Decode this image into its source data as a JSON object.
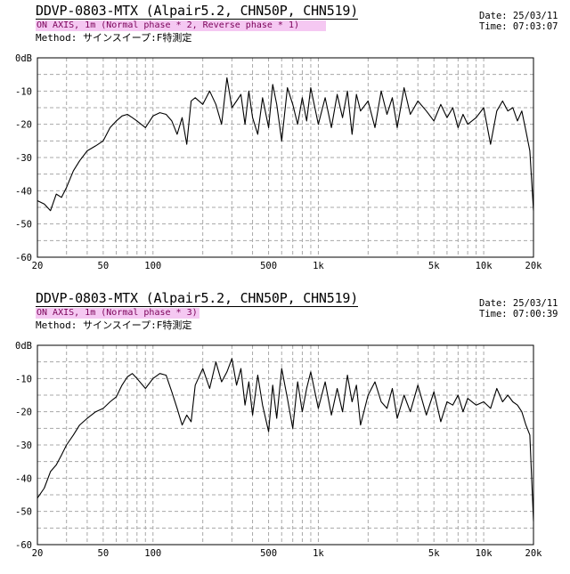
{
  "colors": {
    "subtitle_bg": "#f5c8f2",
    "subtitle_text": "#7a0058",
    "trace": "#000000",
    "grid": "#a8a8a8"
  },
  "charts": [
    {
      "title": "DDVP-0803-MTX (Alpair5.2, CHN50P, CHN519)",
      "subtitle": "ON AXIS, 1m (Normal phase * 2, Reverse phase * 1)",
      "method": "Method: サインスイープ:F特測定",
      "date": "Date: 25/03/11",
      "time": "Time: 07:03:07"
    },
    {
      "title": "DDVP-0803-MTX (Alpair5.2, CHN50P, CHN519)",
      "subtitle": "ON AXIS, 1m (Normal phase * 3)",
      "method": "Method: サインスイープ:F特測定",
      "date": "Date: 25/03/11",
      "time": "Time: 07:00:39"
    }
  ],
  "chart_data": [
    {
      "type": "line",
      "title": "DDVP-0803-MTX (Alpair5.2, CHN50P, CHN519)",
      "subtitle": "ON AXIS, 1m (Normal phase * 2, Reverse phase * 1)",
      "x_scale": "log",
      "xlim": [
        20,
        20000
      ],
      "ylim": [
        -60,
        0
      ],
      "x_tick_labels": [
        "20",
        "50",
        "100",
        "500",
        "1k",
        "5k",
        "10k",
        "20k"
      ],
      "x_tick_values": [
        20,
        50,
        100,
        500,
        1000,
        5000,
        10000,
        20000
      ],
      "y_tick_labels": [
        "0dB",
        "-10",
        "-20",
        "-30",
        "-40",
        "-50",
        "-60"
      ],
      "y_tick_values": [
        0,
        -10,
        -20,
        -30,
        -40,
        -50,
        -60
      ],
      "grid": true,
      "series": [
        {
          "x": [
            20,
            22,
            24,
            26,
            28,
            30,
            33,
            36,
            40,
            45,
            50,
            55,
            60,
            65,
            70,
            75,
            80,
            90,
            100,
            110,
            120,
            130,
            140,
            150,
            160,
            170,
            180,
            200,
            220,
            240,
            260,
            280,
            300,
            320,
            340,
            360,
            380,
            400,
            430,
            460,
            500,
            530,
            560,
            600,
            650,
            700,
            750,
            800,
            850,
            900,
            1000,
            1100,
            1200,
            1300,
            1400,
            1500,
            1600,
            1700,
            1800,
            2000,
            2200,
            2400,
            2600,
            2800,
            3000,
            3300,
            3600,
            4000,
            4500,
            5000,
            5500,
            6000,
            6500,
            7000,
            7500,
            8000,
            9000,
            10000,
            11000,
            12000,
            13000,
            14000,
            15000,
            16000,
            17000,
            18000,
            19000,
            20000
          ],
          "y": [
            -43,
            -44,
            -46,
            -41,
            -42,
            -39,
            -34,
            -31,
            -28,
            -26.5,
            -25,
            -21,
            -19,
            -17.5,
            -17,
            -18,
            -19,
            -21,
            -17.5,
            -16.5,
            -17,
            -19,
            -23,
            -18,
            -26,
            -13,
            -12,
            -14,
            -10,
            -14,
            -20,
            -6,
            -15,
            -13,
            -11,
            -20,
            -10,
            -18,
            -23,
            -12,
            -21,
            -8,
            -14,
            -25,
            -9,
            -14,
            -20,
            -12,
            -19,
            -9,
            -20,
            -12,
            -21,
            -11,
            -18,
            -10,
            -23,
            -11,
            -16,
            -13,
            -21,
            -10,
            -17,
            -12,
            -21,
            -9,
            -17,
            -13,
            -16,
            -19,
            -14,
            -18,
            -15,
            -21,
            -17,
            -20,
            -18,
            -15,
            -26,
            -16,
            -13,
            -16,
            -15,
            -19,
            -16,
            -22,
            -28,
            -46
          ]
        }
      ]
    },
    {
      "type": "line",
      "title": "DDVP-0803-MTX (Alpair5.2, CHN50P, CHN519)",
      "subtitle": "ON AXIS, 1m (Normal phase * 3)",
      "x_scale": "log",
      "xlim": [
        20,
        20000
      ],
      "ylim": [
        -60,
        0
      ],
      "x_tick_labels": [
        "20",
        "50",
        "100",
        "500",
        "1k",
        "5k",
        "10k",
        "20k"
      ],
      "x_tick_values": [
        20,
        50,
        100,
        500,
        1000,
        5000,
        10000,
        20000
      ],
      "y_tick_labels": [
        "0dB",
        "-10",
        "-20",
        "-30",
        "-40",
        "-50",
        "-60"
      ],
      "y_tick_values": [
        0,
        -10,
        -20,
        -30,
        -40,
        -50,
        -60
      ],
      "grid": true,
      "series": [
        {
          "x": [
            20,
            22,
            24,
            26,
            28,
            30,
            33,
            36,
            40,
            45,
            50,
            55,
            60,
            65,
            70,
            75,
            80,
            90,
            100,
            110,
            120,
            130,
            140,
            150,
            160,
            170,
            180,
            200,
            220,
            240,
            260,
            280,
            300,
            320,
            340,
            360,
            380,
            400,
            430,
            460,
            500,
            530,
            560,
            600,
            650,
            700,
            750,
            800,
            850,
            900,
            1000,
            1100,
            1200,
            1300,
            1400,
            1500,
            1600,
            1700,
            1800,
            2000,
            2200,
            2400,
            2600,
            2800,
            3000,
            3300,
            3600,
            4000,
            4500,
            5000,
            5500,
            6000,
            6500,
            7000,
            7500,
            8000,
            9000,
            10000,
            11000,
            12000,
            13000,
            14000,
            15000,
            16000,
            17000,
            18000,
            19000,
            20000
          ],
          "y": [
            -46,
            -43,
            -38,
            -36,
            -33,
            -30,
            -27,
            -24,
            -22,
            -20,
            -19,
            -17,
            -15.5,
            -12,
            -9.5,
            -8.5,
            -10,
            -13,
            -10,
            -8.5,
            -9,
            -14,
            -19,
            -24,
            -21,
            -23,
            -12,
            -7,
            -13,
            -5,
            -11,
            -8,
            -4,
            -12,
            -7,
            -18,
            -11,
            -21,
            -9,
            -18,
            -26,
            -12,
            -22,
            -7,
            -16,
            -25,
            -11,
            -20,
            -13,
            -8,
            -19,
            -11,
            -21,
            -13,
            -20,
            -9,
            -17,
            -12,
            -24,
            -15,
            -11,
            -17,
            -19,
            -13,
            -22,
            -15,
            -20,
            -12,
            -21,
            -14,
            -23,
            -17,
            -18,
            -15,
            -20,
            -16,
            -18,
            -17,
            -19,
            -13,
            -17,
            -15,
            -17,
            -18,
            -20,
            -24,
            -27,
            -53
          ]
        }
      ]
    }
  ]
}
